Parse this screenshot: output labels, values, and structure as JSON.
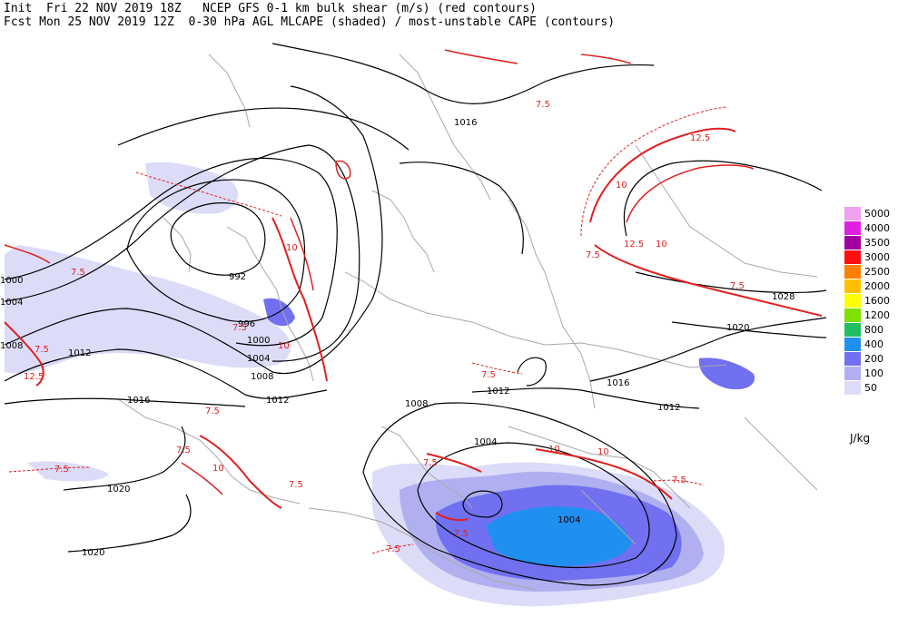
{
  "header": {
    "line1": "Init  Fri 22 NOV 2019 18Z   NCEP GFS 0-1 km bulk shear (m/s) (red contours)",
    "line2": "Fcst Mon 25 NOV 2019 12Z  0-30 hPa AGL MLCAPE (shaded) / most-unstable CAPE (contours)"
  },
  "legend": {
    "unit": "J/kg",
    "entries": [
      {
        "label": "5000",
        "color": "#f0a0f0"
      },
      {
        "label": "4000",
        "color": "#e020e0"
      },
      {
        "label": "3500",
        "color": "#a000a0"
      },
      {
        "label": "3000",
        "color": "#ff1010"
      },
      {
        "label": "2500",
        "color": "#ff8000"
      },
      {
        "label": "2000",
        "color": "#ffc000"
      },
      {
        "label": "1600",
        "color": "#ffff00"
      },
      {
        "label": "1200",
        "color": "#80e000"
      },
      {
        "label": "800",
        "color": "#20c060"
      },
      {
        "label": "400",
        "color": "#2090f0"
      },
      {
        "label": "200",
        "color": "#7070f0"
      },
      {
        "label": "100",
        "color": "#b0b0f0"
      },
      {
        "label": "50",
        "color": "#dcdcf8"
      }
    ]
  },
  "isobar_labels": [
    "1016",
    "992",
    "996",
    "1000",
    "1004",
    "1008",
    "1000",
    "1004",
    "1008",
    "1012",
    "1012",
    "1016",
    "1020",
    "1020",
    "1008",
    "1012",
    "1004",
    "1004",
    "1012",
    "1016",
    "1020",
    "1028"
  ],
  "shear_labels": [
    "7.5",
    "7.5",
    "10",
    "12.5",
    "10",
    "12.5",
    "10",
    "7.5",
    "7.5",
    "10",
    "7.5",
    "7.5",
    "7.5",
    "7.5",
    "12.5",
    "7.5",
    "7.5",
    "10",
    "7.5",
    "7.5",
    "7.5",
    "7.5",
    "10",
    "7.5",
    "10"
  ]
}
